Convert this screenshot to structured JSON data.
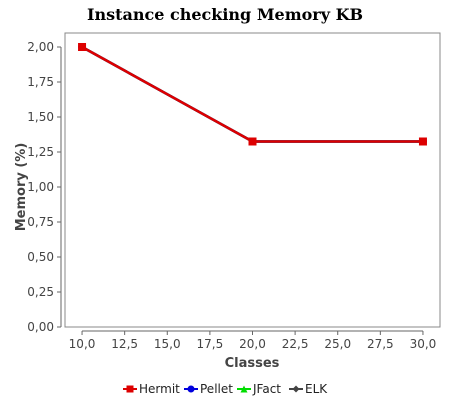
{
  "chart_data": {
    "type": "line",
    "title": "Instance checking Memory KB",
    "xlabel": "Classes",
    "ylabel": "Memory (%)",
    "x_ticks": [
      "10,0",
      "12,5",
      "15,0",
      "17,5",
      "20,0",
      "22,5",
      "25,0",
      "27,5",
      "30,0"
    ],
    "y_ticks": [
      "0,00",
      "0,25",
      "0,50",
      "0,75",
      "1,00",
      "1,25",
      "1,50",
      "1,75",
      "2,00"
    ],
    "xlim": [
      9,
      31
    ],
    "ylim": [
      0,
      2.1
    ],
    "grid": false,
    "legend_position": "bottom",
    "x": [
      10,
      20,
      30
    ],
    "series": [
      {
        "name": "Hermit",
        "values": [
          2.0,
          1.325,
          1.325
        ],
        "color": "#dd0000",
        "marker": "square"
      },
      {
        "name": "Pellet",
        "values": [
          2.0,
          1.325,
          1.325
        ],
        "color": "#0000dd",
        "marker": "circle"
      },
      {
        "name": "JFact",
        "values": [
          2.0,
          1.325,
          1.325
        ],
        "color": "#00dd00",
        "marker": "triangle"
      },
      {
        "name": "ELK",
        "values": [
          2.0,
          1.325,
          1.325
        ],
        "color": "#444444",
        "marker": "diamond"
      }
    ]
  }
}
